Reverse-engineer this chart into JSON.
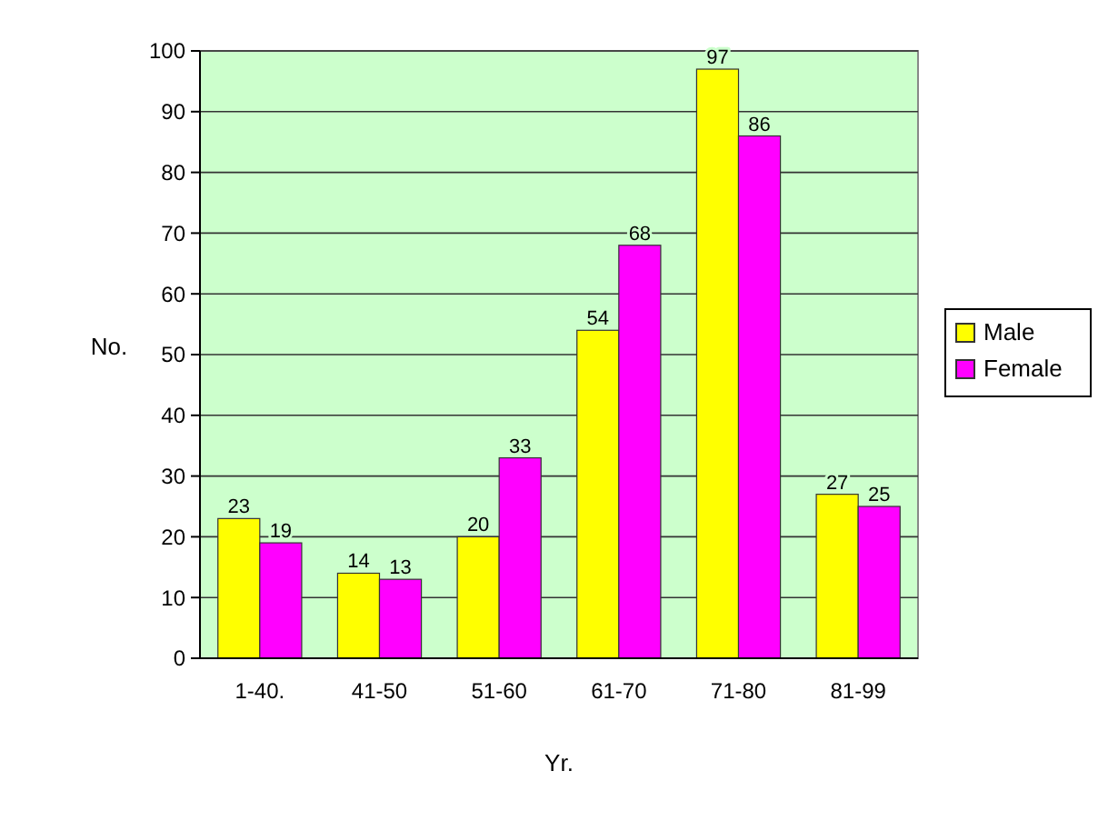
{
  "chart_data": {
    "type": "bar",
    "xlabel": "Yr.",
    "ylabel": "No.",
    "categories": [
      "1-40.",
      "41-50",
      "51-60",
      "61-70",
      "71-80",
      "81-99"
    ],
    "series": [
      {
        "name": "Male",
        "color": "#ffff00",
        "values": [
          23,
          14,
          20,
          54,
          97,
          27
        ]
      },
      {
        "name": "Female",
        "color": "#ff00ff",
        "values": [
          19,
          13,
          33,
          68,
          86,
          25
        ]
      }
    ],
    "ylim": [
      0,
      100
    ],
    "yticks": [
      0,
      10,
      20,
      30,
      40,
      50,
      60,
      70,
      80,
      90,
      100
    ],
    "grid": "y",
    "legend": "right",
    "data_labels": true
  }
}
